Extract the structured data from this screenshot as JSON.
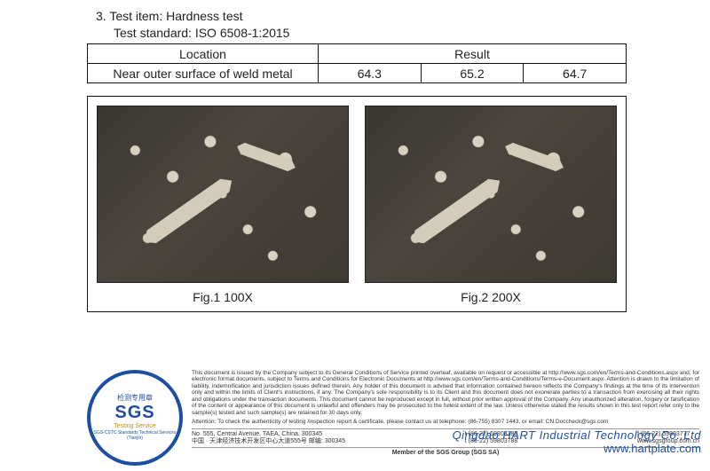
{
  "header": {
    "item_no": "3.",
    "item_label": "Test item:",
    "item_value": "Hardness test",
    "std_label": "Test standard:",
    "std_value": "ISO 6508-1:2015"
  },
  "table": {
    "head_location": "Location",
    "head_result": "Result",
    "row_location": "Near outer surface of weld metal",
    "r1": "64.3",
    "r2": "65.2",
    "r3": "64.7"
  },
  "figs": {
    "cap1": "Fig.1  100X",
    "cap2": "Fig.2  200X"
  },
  "badge": {
    "sgs": "SGS",
    "service": "Testing Service",
    "top": "检测专用章",
    "bottom": "SGS-CSTC Standards Technical Services (Tianjin)"
  },
  "fine": {
    "disclaimer": "This document is issued by the Company subject to its General Conditions of Service printed overleaf, available on request or accessible at http://www.sgs.com/en/Terms-and-Conditions.aspx and, for electronic format documents, subject to Terms and Conditions for Electronic Documents at http://www.sgs.com/en/Terms-and-Conditions/Terms-e-Document.aspx. Attention is drawn to the limitation of liability, indemnification and jurisdiction issues defined therein. Any holder of this document is advised that information contained hereon reflects the Company's findings at the time of its intervention only and within the limits of Client's instructions, if any. The Company's sole responsibility is to its Client and this document does not exonerate parties to a transaction from exercising all their rights and obligations under the transaction documents. This document cannot be reproduced except in full, without prior written approval of the Company. Any unauthorized alteration, forgery or falsification of the content or appearance of this document is unlawful and offenders may be prosecuted to the fullest extent of the law. Unless otherwise stated the results shown in this test report refer only to the sample(s) tested and such sample(s) are retained for 30 days only.",
    "attention": "Attention: To check the authenticity of testing /inspection report & certificate, please contact us at telephone: (86-755) 8307 1443, or email: CN.Doccheck@sgs.com",
    "addr_en": "No. 555, Central Avenue, TAEA, China. 300345",
    "addr_cn": "中国 · 天津经济技术开发区中心大道555号  邮编: 300345",
    "tel": "t  (86-22) 59803788",
    "fax": "f  (86-22) 59803777",
    "web": "www.sgsgroup.com.cn",
    "member": "Member of the SGS Group (SGS SA)"
  },
  "overlay": {
    "company": "Qingdao HART Industrial Technology Co.,Ltd",
    "url": "www.hartplate.com"
  }
}
